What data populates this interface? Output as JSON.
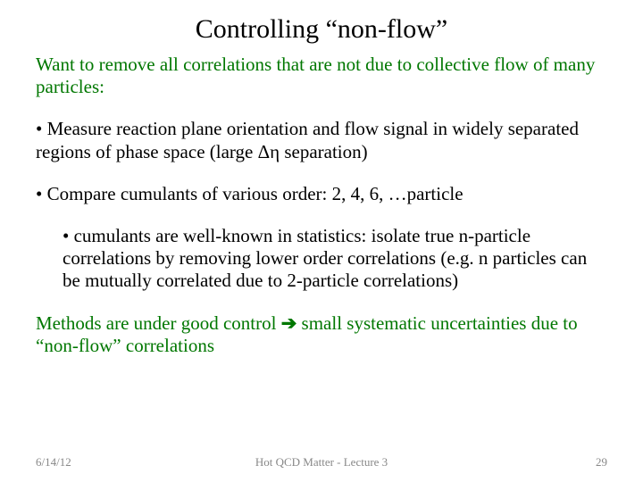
{
  "title": "Controlling “non-flow”",
  "intro": "Want to remove all correlations that are not due to collective flow of many particles:",
  "bullet1": "• Measure reaction plane orientation and flow signal in widely separated regions of phase space (large Δη separation)",
  "bullet2": "• Compare cumulants of various order: 2, 4, 6, …particle",
  "sub": "• cumulants are well-known in statistics: isolate true n-particle correlations by removing lower order correlations (e.g. n particles can be mutually correlated due to 2-particle correlations)",
  "conclusion_pre": "Methods are under good control ",
  "conclusion_arrow": "➔",
  "conclusion_post": " small systematic uncertainties due to “non-flow” correlations",
  "footer": {
    "date": "6/14/12",
    "center": "Hot QCD Matter - Lecture 3",
    "page": "29"
  },
  "colors": {
    "accent": "#007700",
    "body": "#000000",
    "footer": "#888888",
    "background": "#ffffff"
  },
  "typography": {
    "title_fontsize": 30,
    "body_fontsize": 21,
    "footer_fontsize": 13,
    "font_family": "Times New Roman"
  }
}
